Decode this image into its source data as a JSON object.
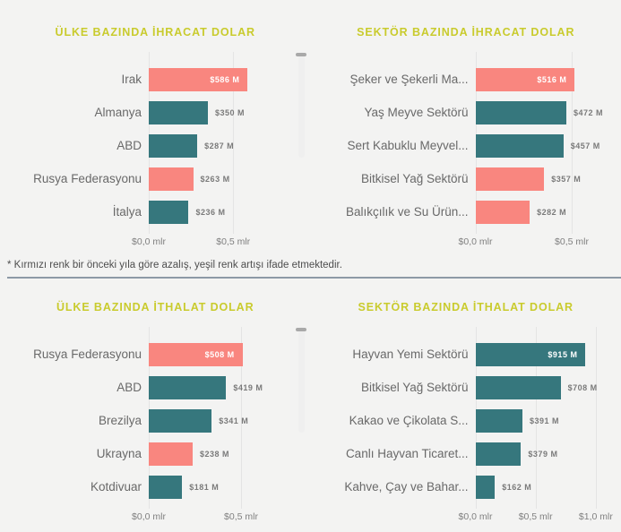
{
  "note": "* Kırmızı renk bir önceki yıla göre azalış, yeşil renk artışı ifade etmektedir.",
  "colors": {
    "decrease_red": "#F9867F",
    "increase_teal": "#36777D",
    "title_olive": "#C9CB2D"
  },
  "chart_data": [
    {
      "id": "exports-by-country",
      "type": "bar",
      "orientation": "horizontal",
      "title": "ÜLKE BAZINDA İHRACAT DOLAR",
      "unit": "USD millions",
      "axis_max_mlr": 0.82,
      "grid": true,
      "ticks": [
        {
          "value": 0.0,
          "label": "$0,0 mlr"
        },
        {
          "value": 0.5,
          "label": "$0,5 mlr"
        }
      ],
      "bars": [
        {
          "category": "Irak",
          "value_m": 586,
          "label": "$586 M",
          "color": "red",
          "label_inside": true
        },
        {
          "category": "Almanya",
          "value_m": 350,
          "label": "$350 M",
          "color": "teal",
          "label_inside": false
        },
        {
          "category": "ABD",
          "value_m": 287,
          "label": "$287 M",
          "color": "teal",
          "label_inside": false
        },
        {
          "category": "Rusya Federasyonu",
          "value_m": 263,
          "label": "$263 M",
          "color": "red",
          "label_inside": false
        },
        {
          "category": "İtalya",
          "value_m": 236,
          "label": "$236 M",
          "color": "teal",
          "label_inside": false
        }
      ]
    },
    {
      "id": "exports-by-sector",
      "type": "bar",
      "orientation": "horizontal",
      "title": "SEKTÖR BAZINDA İHRACAT DOLAR",
      "unit": "USD millions",
      "axis_max_mlr": 0.7,
      "grid": true,
      "ticks": [
        {
          "value": 0.0,
          "label": "$0,0 mlr"
        },
        {
          "value": 0.5,
          "label": "$0,5 mlr"
        }
      ],
      "bars": [
        {
          "category": "Şeker ve Şekerli Ma...",
          "value_m": 516,
          "label": "$516 M",
          "color": "red",
          "label_inside": true
        },
        {
          "category": "Yaş Meyve Sektörü",
          "value_m": 472,
          "label": "$472 M",
          "color": "teal",
          "label_inside": false
        },
        {
          "category": "Sert Kabuklu Meyvel...",
          "value_m": 457,
          "label": "$457 M",
          "color": "teal",
          "label_inside": false
        },
        {
          "category": "Bitkisel Yağ Sektörü",
          "value_m": 357,
          "label": "$357 M",
          "color": "red",
          "label_inside": false
        },
        {
          "category": "Balıkçılık ve Su Ürün...",
          "value_m": 282,
          "label": "$282 M",
          "color": "red",
          "label_inside": false
        }
      ]
    },
    {
      "id": "imports-by-country",
      "type": "bar",
      "orientation": "horizontal",
      "title": "ÜLKE BAZINDA İTHALAT DOLAR",
      "unit": "USD millions",
      "axis_max_mlr": 0.75,
      "grid": true,
      "ticks": [
        {
          "value": 0.0,
          "label": "$0,0 mlr"
        },
        {
          "value": 0.5,
          "label": "$0,5 mlr"
        }
      ],
      "bars": [
        {
          "category": "Rusya Federasyonu",
          "value_m": 508,
          "label": "$508 M",
          "color": "red",
          "label_inside": true
        },
        {
          "category": "ABD",
          "value_m": 419,
          "label": "$419 M",
          "color": "teal",
          "label_inside": false
        },
        {
          "category": "Brezilya",
          "value_m": 341,
          "label": "$341 M",
          "color": "teal",
          "label_inside": false
        },
        {
          "category": "Ukrayna",
          "value_m": 238,
          "label": "$238 M",
          "color": "red",
          "label_inside": false
        },
        {
          "category": "Kotdivuar",
          "value_m": 181,
          "label": "$181 M",
          "color": "teal",
          "label_inside": false
        }
      ]
    },
    {
      "id": "imports-by-sector",
      "type": "bar",
      "orientation": "horizontal",
      "title": "SEKTÖR BAZINDA İTHALAT DOLAR",
      "unit": "USD millions",
      "axis_max_mlr": 1.12,
      "grid": true,
      "ticks": [
        {
          "value": 0.0,
          "label": "$0,0 mlr"
        },
        {
          "value": 0.5,
          "label": "$0,5 mlr"
        },
        {
          "value": 1.0,
          "label": "$1,0 mlr"
        }
      ],
      "bars": [
        {
          "category": "Hayvan Yemi Sektörü",
          "value_m": 915,
          "label": "$915 M",
          "color": "teal",
          "label_inside": true
        },
        {
          "category": "Bitkisel Yağ Sektörü",
          "value_m": 708,
          "label": "$708 M",
          "color": "teal",
          "label_inside": false
        },
        {
          "category": "Kakao ve Çikolata S...",
          "value_m": 391,
          "label": "$391 M",
          "color": "teal",
          "label_inside": false
        },
        {
          "category": "Canlı Hayvan Ticaret...",
          "value_m": 379,
          "label": "$379 M",
          "color": "teal",
          "label_inside": false
        },
        {
          "category": "Kahve, Çay ve Bahar...",
          "value_m": 162,
          "label": "$162 M",
          "color": "teal",
          "label_inside": false
        }
      ]
    }
  ]
}
